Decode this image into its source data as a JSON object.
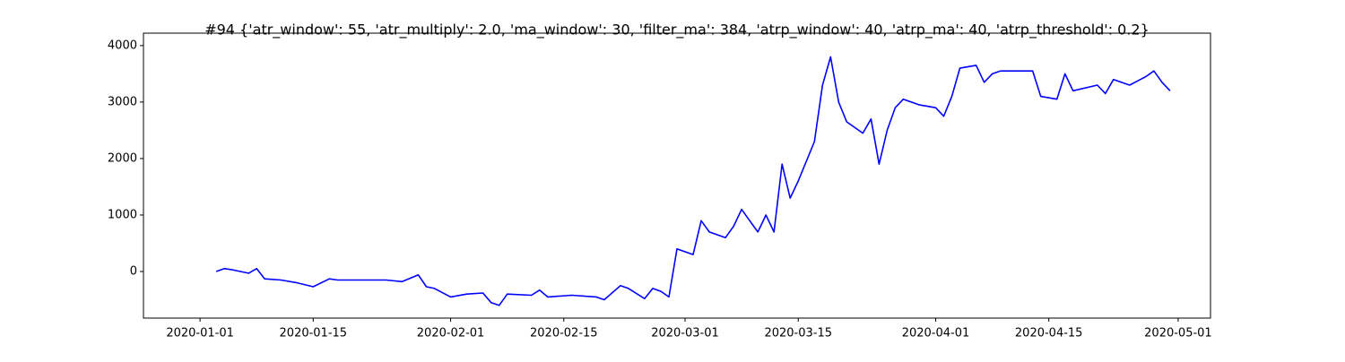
{
  "chart_data": {
    "type": "line",
    "title": "#94 {'atr_window': 55, 'atr_multiply': 2.0, 'ma_window': 30, 'filter_ma': 384, 'atrp_window': 40, 'atrp_ma': 40, 'atrp_threshold': 0.2}",
    "x": [
      "2020-01-03",
      "2020-01-04",
      "2020-01-05",
      "2020-01-07",
      "2020-01-08",
      "2020-01-09",
      "2020-01-11",
      "2020-01-13",
      "2020-01-15",
      "2020-01-17",
      "2020-01-18",
      "2020-01-24",
      "2020-01-26",
      "2020-01-28",
      "2020-01-29",
      "2020-01-30",
      "2020-02-01",
      "2020-02-03",
      "2020-02-05",
      "2020-02-06",
      "2020-02-07",
      "2020-02-08",
      "2020-02-11",
      "2020-02-12",
      "2020-02-13",
      "2020-02-16",
      "2020-02-19",
      "2020-02-20",
      "2020-02-22",
      "2020-02-23",
      "2020-02-25",
      "2020-02-26",
      "2020-02-27",
      "2020-02-28",
      "2020-02-29",
      "2020-03-02",
      "2020-03-03",
      "2020-03-04",
      "2020-03-06",
      "2020-03-07",
      "2020-03-08",
      "2020-03-09",
      "2020-03-10",
      "2020-03-11",
      "2020-03-12",
      "2020-03-13",
      "2020-03-14",
      "2020-03-15",
      "2020-03-17",
      "2020-03-18",
      "2020-03-19",
      "2020-03-20",
      "2020-03-21",
      "2020-03-23",
      "2020-03-24",
      "2020-03-25",
      "2020-03-26",
      "2020-03-27",
      "2020-03-28",
      "2020-03-30",
      "2020-04-01",
      "2020-04-02",
      "2020-04-03",
      "2020-04-04",
      "2020-04-06",
      "2020-04-07",
      "2020-04-08",
      "2020-04-09",
      "2020-04-13",
      "2020-04-14",
      "2020-04-16",
      "2020-04-17",
      "2020-04-18",
      "2020-04-21",
      "2020-04-22",
      "2020-04-23",
      "2020-04-25",
      "2020-04-27",
      "2020-04-28",
      "2020-04-29",
      "2020-04-30"
    ],
    "series": [
      {
        "color": "#0000ff",
        "values": [
          0,
          50,
          30,
          -30,
          50,
          -130,
          -150,
          -200,
          -270,
          -130,
          -150,
          -150,
          -180,
          -60,
          -270,
          -300,
          -450,
          -400,
          -380,
          -550,
          -600,
          -400,
          -420,
          -330,
          -450,
          -420,
          -450,
          -500,
          -250,
          -300,
          -480,
          -300,
          -350,
          -450,
          400,
          300,
          900,
          700,
          600,
          800,
          1100,
          900,
          700,
          1000,
          700,
          1900,
          1300,
          1600,
          2300,
          3300,
          3800,
          3000,
          2650,
          2450,
          2700,
          1900,
          2500,
          2900,
          3050,
          2950,
          2900,
          2750,
          3100,
          3600,
          3650,
          3350,
          3500,
          3550,
          3550,
          3100,
          3050,
          3500,
          3200,
          3300,
          3150,
          3400,
          3300,
          3450,
          3550,
          3350,
          3200
        ]
      }
    ],
    "xlim": [
      "2019-12-25",
      "2020-05-05"
    ],
    "xticks": [
      "2020-01-01",
      "2020-01-15",
      "2020-02-01",
      "2020-02-15",
      "2020-03-01",
      "2020-03-15",
      "2020-04-01",
      "2020-04-15",
      "2020-05-01"
    ],
    "ylim": [
      -825,
      4220
    ],
    "yticks": [
      0,
      1000,
      2000,
      3000,
      4000
    ]
  }
}
